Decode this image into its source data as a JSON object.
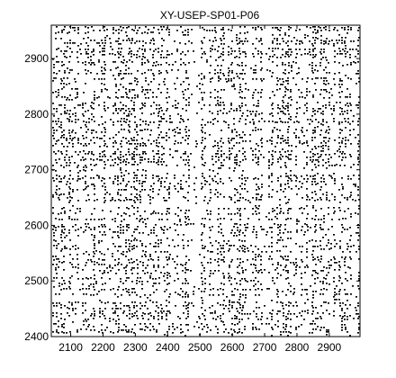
{
  "chart_data": {
    "type": "scatter",
    "subtype": "recurrence-plot",
    "title": "XY-USEP-SP01-P06",
    "xlabel": "",
    "ylabel": "",
    "xlim": [
      2040,
      2995
    ],
    "ylim": [
      2400,
      2960
    ],
    "x_ticks": [
      "2100",
      "2200",
      "2300",
      "2400",
      "2500",
      "2600",
      "2700",
      "2800",
      "2900"
    ],
    "y_ticks": [
      "2400",
      "2500",
      "2600",
      "2700",
      "2800",
      "2900"
    ],
    "grid": false,
    "legend": "none",
    "marker_color": "#000000",
    "background": "#ffffff"
  }
}
